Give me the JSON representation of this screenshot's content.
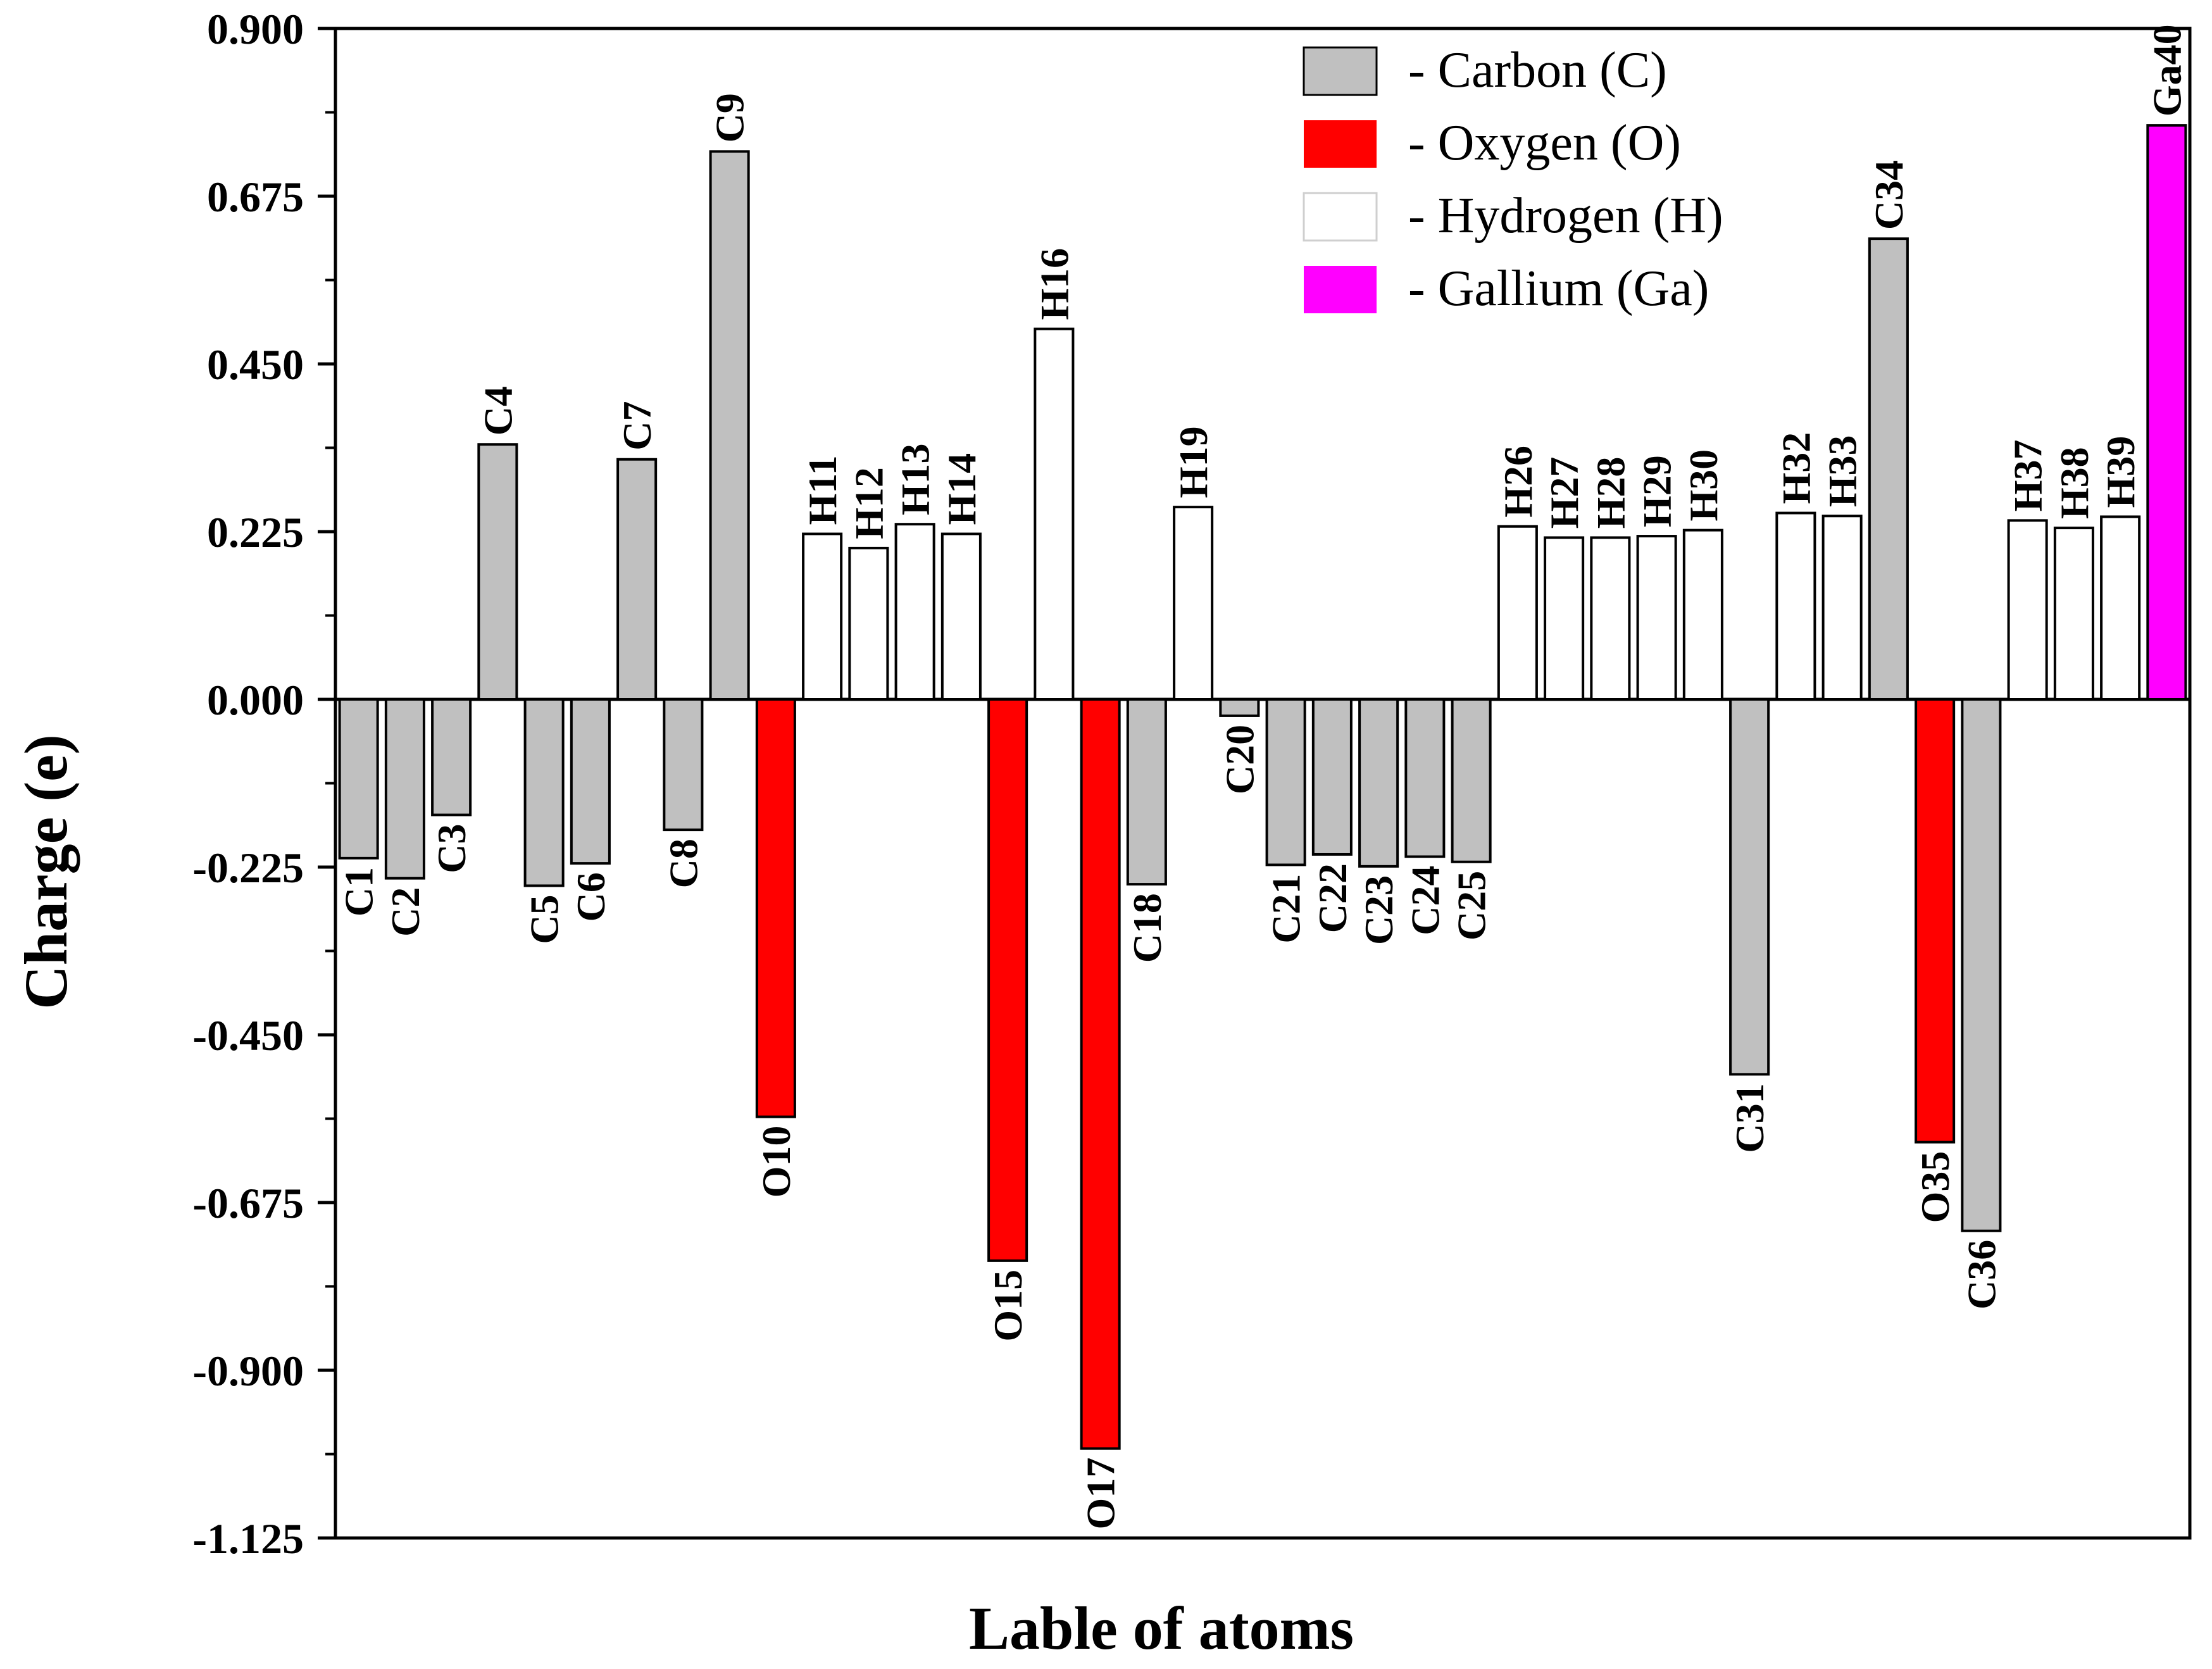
{
  "chart_data": {
    "type": "bar",
    "title": "",
    "xlabel": "Lable of atoms",
    "ylabel": "Charge (e)",
    "ylim": [
      -1.125,
      0.9
    ],
    "yticks": [
      "0.900",
      "0.675",
      "0.450",
      "0.225",
      "0.000",
      "-0.225",
      "-0.450",
      "-0.675",
      "-0.900",
      "-1.125"
    ],
    "ytick_values": [
      0.9,
      0.675,
      0.45,
      0.225,
      0.0,
      -0.225,
      -0.45,
      -0.675,
      -0.9,
      -1.125
    ],
    "colors": {
      "C": "#c0c0c0",
      "O": "#ff0000",
      "H": "#ffffff",
      "Ga": "#ff00ff"
    },
    "legend": [
      {
        "key": "C",
        "label": "- Carbon (C)"
      },
      {
        "key": "O",
        "label": "- Oxygen (O)"
      },
      {
        "key": "H",
        "label": "- Hydrogen (H)"
      },
      {
        "key": "Ga",
        "label": "- Gallium (Ga)"
      }
    ],
    "bars": [
      {
        "label": "C1",
        "element": "C",
        "value": -0.213
      },
      {
        "label": "C2",
        "element": "C",
        "value": -0.24
      },
      {
        "label": "C3",
        "element": "C",
        "value": -0.155
      },
      {
        "label": "C4",
        "element": "C",
        "value": 0.342
      },
      {
        "label": "C5",
        "element": "C",
        "value": -0.25
      },
      {
        "label": "C6",
        "element": "C",
        "value": -0.22
      },
      {
        "label": "C7",
        "element": "C",
        "value": 0.322
      },
      {
        "label": "C8",
        "element": "C",
        "value": -0.175
      },
      {
        "label": "C9",
        "element": "C",
        "value": 0.735
      },
      {
        "label": "O10",
        "element": "O",
        "value": -0.56
      },
      {
        "label": "H11",
        "element": "H",
        "value": 0.222
      },
      {
        "label": "H12",
        "element": "H",
        "value": 0.203
      },
      {
        "label": "H13",
        "element": "H",
        "value": 0.235
      },
      {
        "label": "H14",
        "element": "H",
        "value": 0.222
      },
      {
        "label": "O15",
        "element": "O",
        "value": -0.753
      },
      {
        "label": "H16",
        "element": "H",
        "value": 0.497
      },
      {
        "label": "O17",
        "element": "O",
        "value": -1.005
      },
      {
        "label": "C18",
        "element": "C",
        "value": -0.248
      },
      {
        "label": "H19",
        "element": "H",
        "value": 0.258
      },
      {
        "label": "C20",
        "element": "C",
        "value": -0.022
      },
      {
        "label": "C21",
        "element": "C",
        "value": -0.222
      },
      {
        "label": "C22",
        "element": "C",
        "value": -0.208
      },
      {
        "label": "C23",
        "element": "C",
        "value": -0.224
      },
      {
        "label": "C24",
        "element": "C",
        "value": -0.211
      },
      {
        "label": "C25",
        "element": "C",
        "value": -0.218
      },
      {
        "label": "H26",
        "element": "H",
        "value": 0.232
      },
      {
        "label": "H27",
        "element": "H",
        "value": 0.217
      },
      {
        "label": "H28",
        "element": "H",
        "value": 0.217
      },
      {
        "label": "H29",
        "element": "H",
        "value": 0.219
      },
      {
        "label": "H30",
        "element": "H",
        "value": 0.227
      },
      {
        "label": "C31",
        "element": "C",
        "value": -0.503
      },
      {
        "label": "H32",
        "element": "H",
        "value": 0.25
      },
      {
        "label": "H33",
        "element": "H",
        "value": 0.246
      },
      {
        "label": "C34",
        "element": "C",
        "value": 0.618
      },
      {
        "label": "O35",
        "element": "O",
        "value": -0.594
      },
      {
        "label": "C36",
        "element": "C",
        "value": -0.713
      },
      {
        "label": "H37",
        "element": "H",
        "value": 0.24
      },
      {
        "label": "H38",
        "element": "H",
        "value": 0.23
      },
      {
        "label": "H39",
        "element": "H",
        "value": 0.245
      },
      {
        "label": "Ga40",
        "element": "Ga",
        "value": 0.77
      }
    ]
  }
}
